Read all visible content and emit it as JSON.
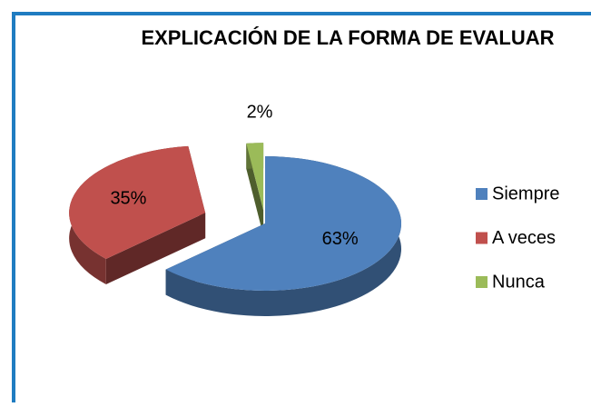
{
  "chart_data": {
    "type": "pie",
    "title": "EXPLICACIÓN DE LA FORMA DE EVALUAR",
    "categories": [
      "Siempre",
      "A veces",
      "Nunca"
    ],
    "values": [
      63,
      35,
      2
    ],
    "value_labels": [
      "63%",
      "35%",
      "2%"
    ],
    "colors": [
      "#4f81bd",
      "#c0504d",
      "#9bbb59"
    ],
    "legend": "right"
  }
}
